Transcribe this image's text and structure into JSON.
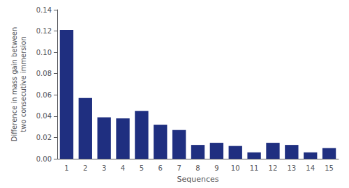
{
  "chart_data": {
    "type": "bar",
    "categories": [
      1,
      2,
      3,
      4,
      5,
      6,
      7,
      8,
      9,
      10,
      11,
      12,
      13,
      14,
      15
    ],
    "values": [
      0.121,
      0.057,
      0.039,
      0.038,
      0.045,
      0.032,
      0.027,
      0.013,
      0.015,
      0.012,
      0.006,
      0.015,
      0.013,
      0.006,
      0.01
    ],
    "color": "#1f2f80",
    "xlabel": "Sequences",
    "ylabel": "Difference in mass gain between two consecutive immersion",
    "ylim": [
      0,
      0.14
    ],
    "yticks": [
      {
        "value": 0,
        "label": "0.00"
      },
      {
        "value": 0.02,
        "label": "0.02"
      },
      {
        "value": 0.04,
        "label": "0.04"
      },
      {
        "value": 0.06,
        "label": "0.06"
      },
      {
        "value": 0.08,
        "label": "0.08"
      },
      {
        "value": 0.1,
        "label": "0.10"
      },
      {
        "value": 0.12,
        "label": "0.12"
      },
      {
        "value": 0.14,
        "label": "0.14"
      }
    ],
    "grid": false
  }
}
